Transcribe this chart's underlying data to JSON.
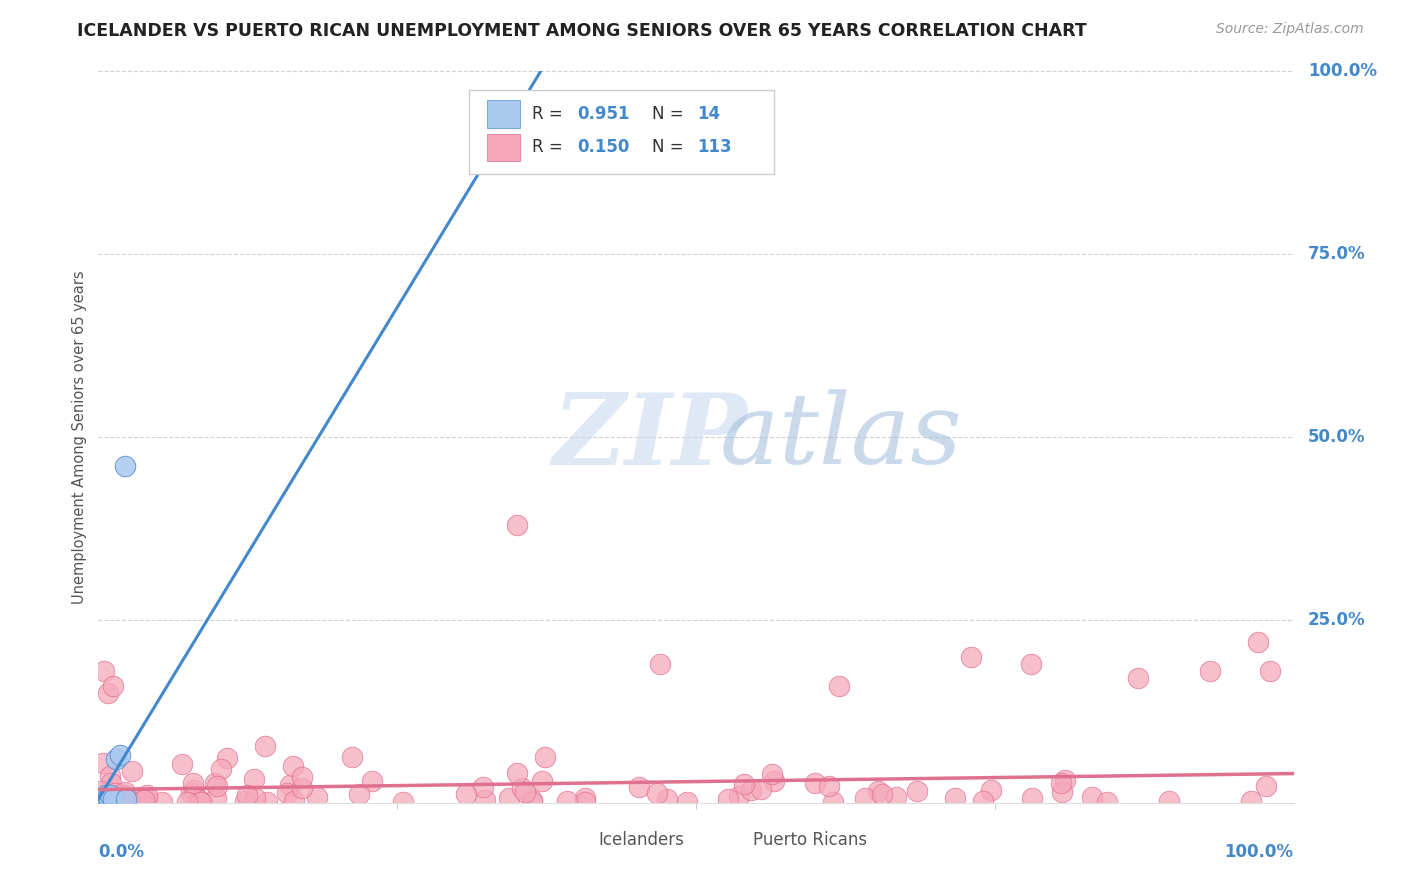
{
  "title": "ICELANDER VS PUERTO RICAN UNEMPLOYMENT AMONG SENIORS OVER 65 YEARS CORRELATION CHART",
  "source": "Source: ZipAtlas.com",
  "ylabel": "Unemployment Among Seniors over 65 years",
  "watermark_zip": "ZIP",
  "watermark_atlas": "atlas",
  "R_icelander": 0.951,
  "N_icelander": 14,
  "R_puerto_rican": 0.15,
  "N_puerto_rican": 113,
  "icelander_color": "#aac8f0",
  "puerto_rican_color": "#f5a8bc",
  "icelander_edge_color": "#5090d0",
  "puerto_rican_edge_color": "#e06888",
  "icelander_line_color": "#4488cc",
  "puerto_rican_line_color": "#e07090",
  "background_color": "#ffffff",
  "grid_color": "#cccccc",
  "title_color": "#222222",
  "axis_label_color": "#555555",
  "tick_color": "#4488cc",
  "source_color": "#999999",
  "legend_border_color": "#cccccc",
  "legend_text_color": "#333333",
  "legend_value_color": "#4488cc",
  "watermark_zip_color": "#c5d8f0",
  "watermark_atlas_color": "#a0bcdc",
  "bottom_legend_text_color": "#555555"
}
